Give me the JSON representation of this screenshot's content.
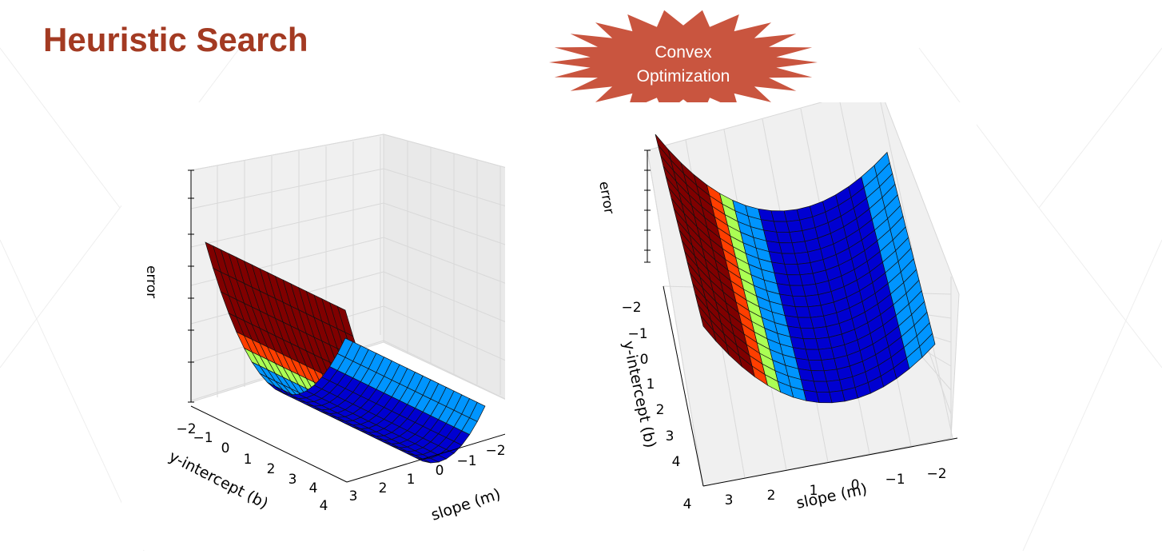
{
  "slide": {
    "title": "Heuristic Search",
    "badge": {
      "line1": "Convex",
      "line2": "Optimization"
    },
    "colors": {
      "title": "#a33a22",
      "badge_fill": "#c9553f",
      "badge_text": "#ffffff"
    }
  },
  "chart_data": [
    {
      "type": "surface3d",
      "title": "",
      "function": "error = m^2 (convex bowl along slope; nearly flat along y-intercept)",
      "xlabel": "slope (m)",
      "ylabel": "y-intercept (b)",
      "zlabel": "error",
      "x": [
        -2,
        -1,
        0,
        1,
        2,
        3,
        4
      ],
      "y": [
        -2,
        -1,
        0,
        1,
        2,
        3,
        4
      ],
      "slope_ticks": [
        "4",
        "3",
        "2",
        "1",
        "0",
        "−1",
        "−2"
      ],
      "intercept_ticks": [
        "−2",
        "−1",
        "0",
        "1",
        "2",
        "3",
        "4"
      ],
      "colormap": "jet",
      "view": "left"
    },
    {
      "type": "surface3d",
      "title": "",
      "function": "error = m^2 (convex bowl along slope; nearly flat along y-intercept)",
      "xlabel": "slope (m)",
      "ylabel": "y-intercept (b)",
      "zlabel": "error",
      "x": [
        -2,
        -1,
        0,
        1,
        2,
        3,
        4
      ],
      "y": [
        -2,
        -1,
        0,
        1,
        2,
        3,
        4
      ],
      "slope_ticks": [
        "4",
        "3",
        "2",
        "1",
        "0",
        "−1",
        "−2"
      ],
      "intercept_ticks": [
        "−2",
        "−1",
        "0",
        "1",
        "2",
        "3",
        "4"
      ],
      "colormap": "jet",
      "view": "right"
    }
  ]
}
